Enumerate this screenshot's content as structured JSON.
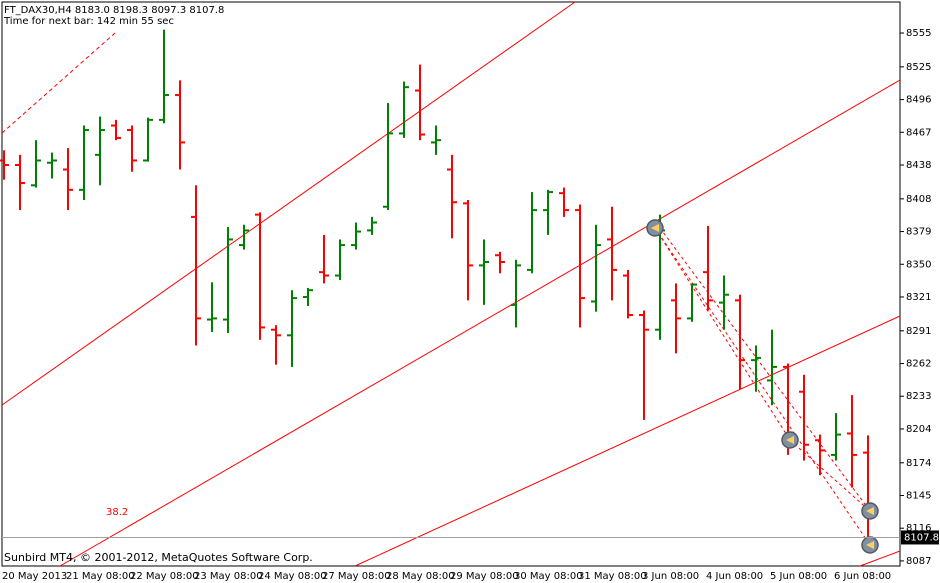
{
  "chart_data": {
    "type": "ohlc",
    "title": "FT_DAX30,H4  8183.0 8198.3 8097.3 8107.8",
    "subtitle": "Time for next bar: 142 min 55 sec",
    "footer": "Sunbird MT4, © 2001-2012, MetaQuotes Software Corp.",
    "annotation": "38.2",
    "up_color": "#008000",
    "down_color": "#ff0000",
    "categories": [
      "20 May 2013",
      null,
      null,
      null,
      "21 May 08:00",
      null,
      null,
      null,
      "22 May 08:00",
      null,
      null,
      null,
      "23 May 08:00",
      null,
      null,
      null,
      "24 May 08:00",
      null,
      null,
      null,
      "27 May 08:00",
      null,
      null,
      null,
      "28 May 08:00",
      null,
      null,
      null,
      "29 May 08:00",
      null,
      null,
      null,
      "30 May 08:00",
      null,
      null,
      null,
      "31 May 08:00",
      null,
      null,
      null,
      "3 Jun 08:00",
      null,
      null,
      null,
      "4 Jun 08:00",
      null,
      null,
      null,
      "5 Jun 08:00",
      null,
      null,
      null,
      "6 Jun 08:00",
      null,
      null
    ],
    "open": [
      8442,
      8438,
      8420,
      8440,
      8434,
      8416,
      8447,
      8473,
      8469,
      8442,
      8478,
      8500,
      8392,
      8301,
      8301,
      8367,
      8394,
      8292,
      8287,
      8321,
      8343,
      8340,
      8367,
      8380,
      8401,
      8466,
      8504,
      8458,
      8434,
      8404,
      8349,
      8358,
      8314,
      8345,
      8398,
      8413,
      8398,
      8317,
      8372,
      8340,
      8305,
      8292,
      8318,
      8302,
      8343,
      8316,
      8318,
      8265,
      8247,
      8259,
      8237,
      8194,
      8181,
      8200,
      8183.0
    ],
    "high": [
      8451,
      8447,
      8460,
      8449,
      8453,
      8473,
      8481,
      8478,
      8473,
      8480,
      8558,
      8513,
      8420,
      8334,
      8383,
      8385,
      8396,
      8296,
      8327,
      8329,
      8376,
      8372,
      8387,
      8392,
      8493,
      8512,
      8527,
      8473,
      8447,
      8407,
      8372,
      8361,
      8354,
      8414,
      8416,
      8418,
      8403,
      8385,
      8401,
      8345,
      8309,
      8394,
      8333,
      8333,
      8384,
      8340,
      8323,
      8278,
      8292,
      8262,
      8252,
      8199,
      8218,
      8234,
      8198.3
    ],
    "low": [
      8425,
      8398,
      8418,
      8426,
      8398,
      8407,
      8420,
      8460,
      8432,
      8441,
      8475,
      8434,
      8278,
      8290,
      8289,
      8363,
      8283,
      8261,
      8259,
      8313,
      8333,
      8336,
      8363,
      8376,
      8398,
      8462,
      8460,
      8447,
      8373,
      8318,
      8314,
      8342,
      8294,
      8342,
      8376,
      8392,
      8294,
      8308,
      8318,
      8302,
      8212,
      8283,
      8271,
      8299,
      8309,
      8292,
      8239,
      8237,
      8225,
      8181,
      8176,
      8163,
      8176,
      8152,
      8097.3
    ],
    "close": [
      8438,
      8422,
      8442,
      8442,
      8416,
      8469,
      8469,
      8462,
      8442,
      8478,
      8500,
      8458,
      8302,
      8302,
      8372,
      8380,
      8294,
      8287,
      8320,
      8327,
      8340,
      8367,
      8379,
      8387,
      8466,
      8507,
      8465,
      8460,
      8405,
      8349,
      8352,
      8352,
      8349,
      8398,
      8414,
      8398,
      8320,
      8367,
      8345,
      8305,
      8292,
      8380,
      8302,
      8332,
      8318,
      8323,
      8265,
      8267,
      8259,
      8194,
      8190,
      8185,
      8199,
      8181,
      8107.8
    ],
    "ylim": [
      8082.5,
      8582.5
    ],
    "yticks": [
      8087,
      8116,
      8145,
      8174,
      8204,
      8233,
      8262,
      8291,
      8321,
      8350,
      8379,
      8408,
      8438,
      8467,
      8496,
      8525,
      8555
    ]
  }
}
